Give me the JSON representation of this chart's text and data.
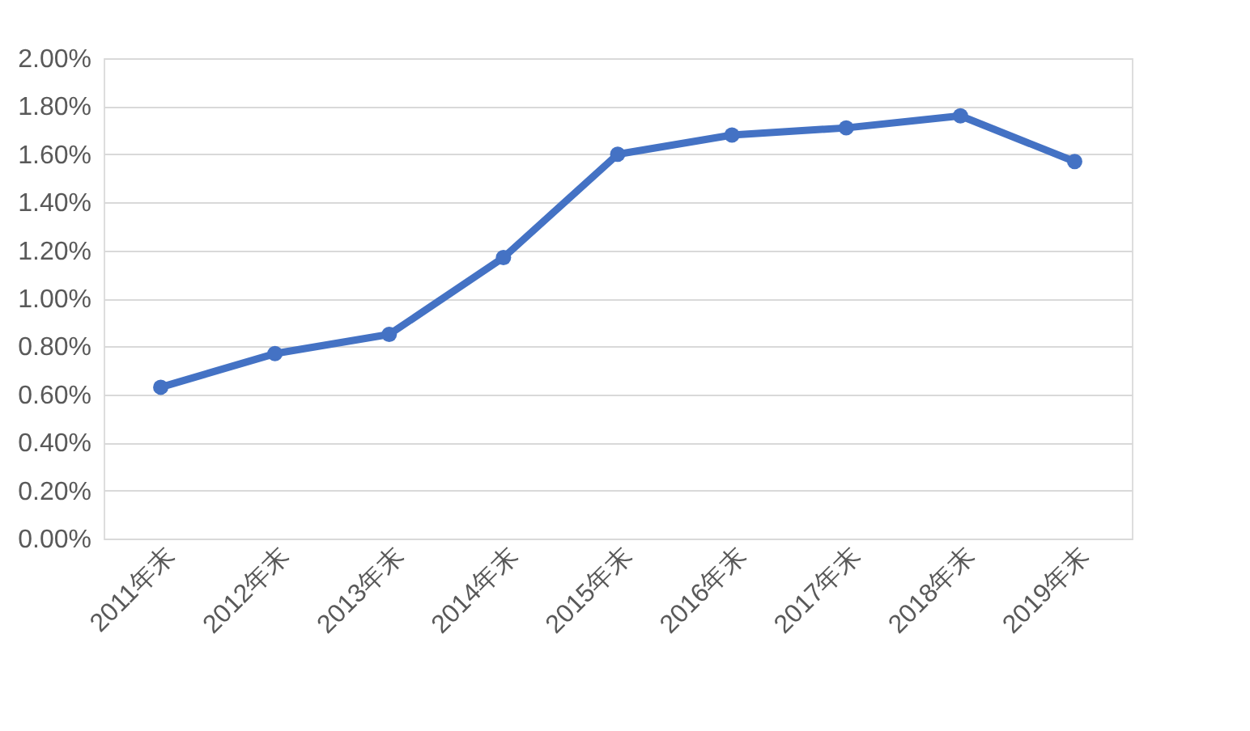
{
  "chart_data": {
    "type": "line",
    "categories": [
      "2011年末",
      "2012年末",
      "2013年末",
      "2014年末",
      "2015年末",
      "2016年末",
      "2017年末",
      "2018年末",
      "2019年末"
    ],
    "series": [
      {
        "color": "#4472c4",
        "values": [
          0.63,
          0.77,
          0.85,
          1.17,
          1.6,
          1.68,
          1.71,
          1.76,
          1.57
        ]
      }
    ],
    "ylim": [
      0,
      2
    ],
    "yticks": [
      {
        "value": 0,
        "label": "0.00%"
      },
      {
        "value": 0.2,
        "label": "0.20%"
      },
      {
        "value": 0.4,
        "label": "0.40%"
      },
      {
        "value": 0.6,
        "label": "0.60%"
      },
      {
        "value": 0.8,
        "label": "0.80%"
      },
      {
        "value": 1.0,
        "label": "1.00%"
      },
      {
        "value": 1.2,
        "label": "1.20%"
      },
      {
        "value": 1.4,
        "label": "1.40%"
      },
      {
        "value": 1.6,
        "label": "1.60%"
      },
      {
        "value": 1.8,
        "label": "1.80%"
      },
      {
        "value": 2.0,
        "label": "2.00%"
      }
    ],
    "grid": "y",
    "marker": "circle",
    "line_style": "solid"
  }
}
